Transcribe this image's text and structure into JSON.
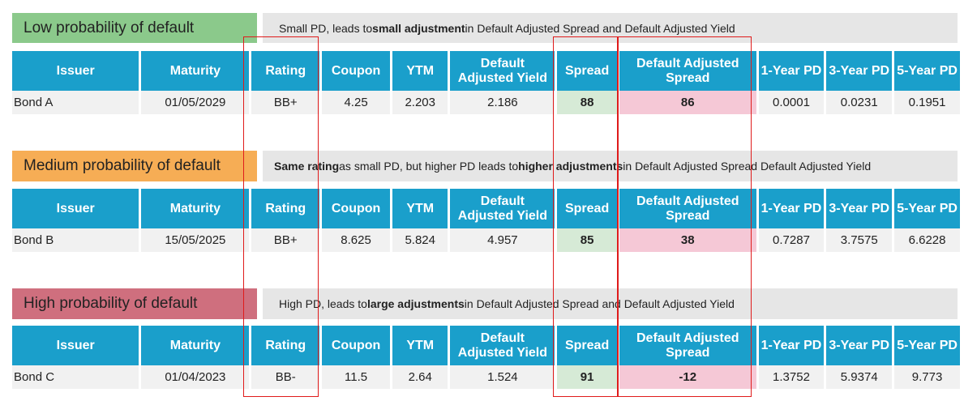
{
  "columns": [
    "Issuer",
    "Maturity",
    "Rating",
    "Coupon",
    "YTM",
    "Default Adjusted Yield",
    "Spread",
    "Default Adjusted Spread",
    "1-Year PD",
    "3-Year PD",
    "5-Year PD"
  ],
  "sections": [
    {
      "label": "Low probability of default",
      "label_color": "#8bc98b",
      "desc_pre": "Small PD, leads to ",
      "desc_b1": "small adjustment",
      "desc_mid": " in Default Adjusted Spread and Default Adjusted Yield",
      "desc_b2": "",
      "desc_post": "",
      "row": [
        "Bond A",
        "01/05/2029",
        "BB+",
        "4.25",
        "2.203",
        "2.186",
        "88",
        "86",
        "0.0001",
        "0.0231",
        "0.1951"
      ]
    },
    {
      "label": "Medium probability of default",
      "label_color": "#f6ad55",
      "desc_pre": "",
      "desc_b1": "Same rating",
      "desc_mid": " as small PD, but higher PD leads to ",
      "desc_b2": "higher adjustments",
      "desc_post": " in Default Adjusted Spread Default Adjusted Yield",
      "row": [
        "Bond B",
        "15/05/2025",
        "BB+",
        "8.625",
        "5.824",
        "4.957",
        "85",
        "38",
        "0.7287",
        "3.7575",
        "6.6228"
      ]
    },
    {
      "label": "High probability of default",
      "label_color": "#cf6f7e",
      "desc_pre": "High PD, leads to ",
      "desc_b1": "large adjustments",
      "desc_mid": " in Default Adjusted Spread and Default Adjusted Yield",
      "desc_b2": "",
      "desc_post": "",
      "row": [
        "Bond C",
        "01/04/2023",
        "BB-",
        "11.5",
        "2.64",
        "1.524",
        "91",
        "-12",
        "1.3752",
        "5.9374",
        "9.773"
      ]
    }
  ]
}
